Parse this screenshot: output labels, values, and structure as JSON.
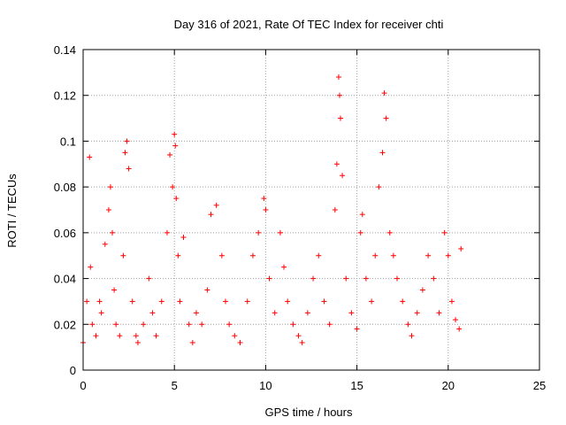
{
  "chart_data": {
    "type": "scatter",
    "title": "Day 316 of 2021, Rate Of TEC Index for receiver chti",
    "xlabel": "GPS time / hours",
    "ylabel": "ROTI / TECUs",
    "xlim": [
      0,
      25
    ],
    "ylim": [
      0,
      0.14
    ],
    "x_ticks": [
      0,
      5,
      10,
      15,
      20,
      25
    ],
    "x_tick_labels": [
      "0",
      "5",
      "10",
      "15",
      "20",
      "25"
    ],
    "y_ticks": [
      0,
      0.02,
      0.04,
      0.06,
      0.08,
      0.1,
      0.12,
      0.14
    ],
    "y_tick_labels": [
      "0",
      "0.02",
      "0.04",
      "0.06",
      "0.08",
      "0.1",
      "0.12",
      "0.14"
    ],
    "grid": true,
    "marker": "+",
    "series_color": "#ff0000",
    "series": [
      {
        "name": "ROTI",
        "x": [
          0.0,
          0.2,
          0.35,
          0.4,
          0.5,
          0.7,
          0.9,
          1.0,
          1.2,
          1.4,
          1.5,
          1.6,
          1.7,
          1.8,
          2.0,
          2.2,
          2.3,
          2.4,
          2.5,
          2.7,
          2.9,
          3.0,
          3.3,
          3.6,
          3.8,
          4.0,
          4.3,
          4.6,
          4.75,
          4.9,
          5.0,
          5.05,
          5.1,
          5.2,
          5.3,
          5.5,
          5.8,
          6.0,
          6.2,
          6.5,
          6.8,
          7.0,
          7.3,
          7.6,
          7.8,
          8.0,
          8.3,
          8.6,
          9.0,
          9.3,
          9.6,
          9.9,
          10.0,
          10.2,
          10.5,
          10.8,
          11.0,
          11.2,
          11.5,
          11.8,
          12.0,
          12.3,
          12.6,
          12.9,
          13.2,
          13.5,
          13.8,
          13.9,
          14.0,
          14.05,
          14.1,
          14.2,
          14.4,
          14.7,
          15.0,
          15.2,
          15.3,
          15.5,
          15.8,
          16.0,
          16.2,
          16.4,
          16.5,
          16.6,
          16.8,
          17.0,
          17.2,
          17.5,
          17.8,
          18.0,
          18.3,
          18.6,
          18.9,
          19.2,
          19.5,
          19.8,
          20.0,
          20.2,
          20.4,
          20.6,
          20.7
        ],
        "y": [
          0.012,
          0.03,
          0.093,
          0.045,
          0.02,
          0.015,
          0.03,
          0.025,
          0.055,
          0.07,
          0.08,
          0.06,
          0.035,
          0.02,
          0.015,
          0.05,
          0.095,
          0.1,
          0.088,
          0.03,
          0.015,
          0.012,
          0.02,
          0.04,
          0.025,
          0.015,
          0.03,
          0.06,
          0.094,
          0.08,
          0.103,
          0.098,
          0.075,
          0.05,
          0.03,
          0.058,
          0.02,
          0.012,
          0.025,
          0.02,
          0.035,
          0.068,
          0.072,
          0.05,
          0.03,
          0.02,
          0.015,
          0.012,
          0.03,
          0.05,
          0.06,
          0.075,
          0.07,
          0.04,
          0.025,
          0.06,
          0.045,
          0.03,
          0.02,
          0.015,
          0.012,
          0.025,
          0.04,
          0.05,
          0.03,
          0.02,
          0.07,
          0.09,
          0.128,
          0.12,
          0.11,
          0.085,
          0.04,
          0.025,
          0.018,
          0.06,
          0.068,
          0.04,
          0.03,
          0.05,
          0.08,
          0.095,
          0.121,
          0.11,
          0.06,
          0.05,
          0.04,
          0.03,
          0.02,
          0.015,
          0.025,
          0.035,
          0.05,
          0.04,
          0.025,
          0.06,
          0.05,
          0.03,
          0.022,
          0.018,
          0.053
        ]
      }
    ]
  }
}
